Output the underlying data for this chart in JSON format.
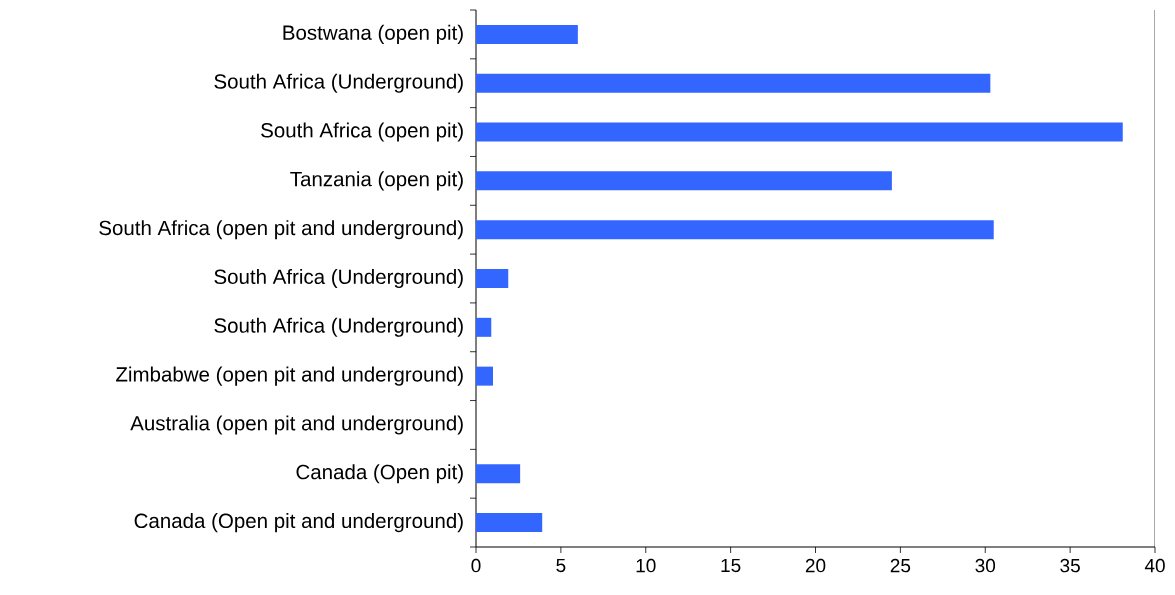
{
  "chart_data": {
    "type": "bar",
    "orientation": "horizontal",
    "categories": [
      "Bostwana (open pit)",
      "South Africa (Underground)",
      "South Africa (open pit)",
      "Tanzania (open pit)",
      "South Africa (open pit and underground)",
      "South Africa (Underground)",
      "South Africa (Underground)",
      "Zimbabwe (open pit and underground)",
      "Australia (open pit and underground)",
      "Canada (Open pit)",
      "Canada (Open pit and underground)"
    ],
    "values": [
      6.0,
      30.3,
      38.1,
      24.5,
      30.5,
      1.9,
      0.9,
      1.0,
      0,
      2.6,
      3.9
    ],
    "color": "#3366ff",
    "xlim": [
      0,
      40
    ],
    "xticks": [
      0,
      5,
      10,
      15,
      20,
      25,
      30,
      35,
      40
    ],
    "grid": false
  }
}
